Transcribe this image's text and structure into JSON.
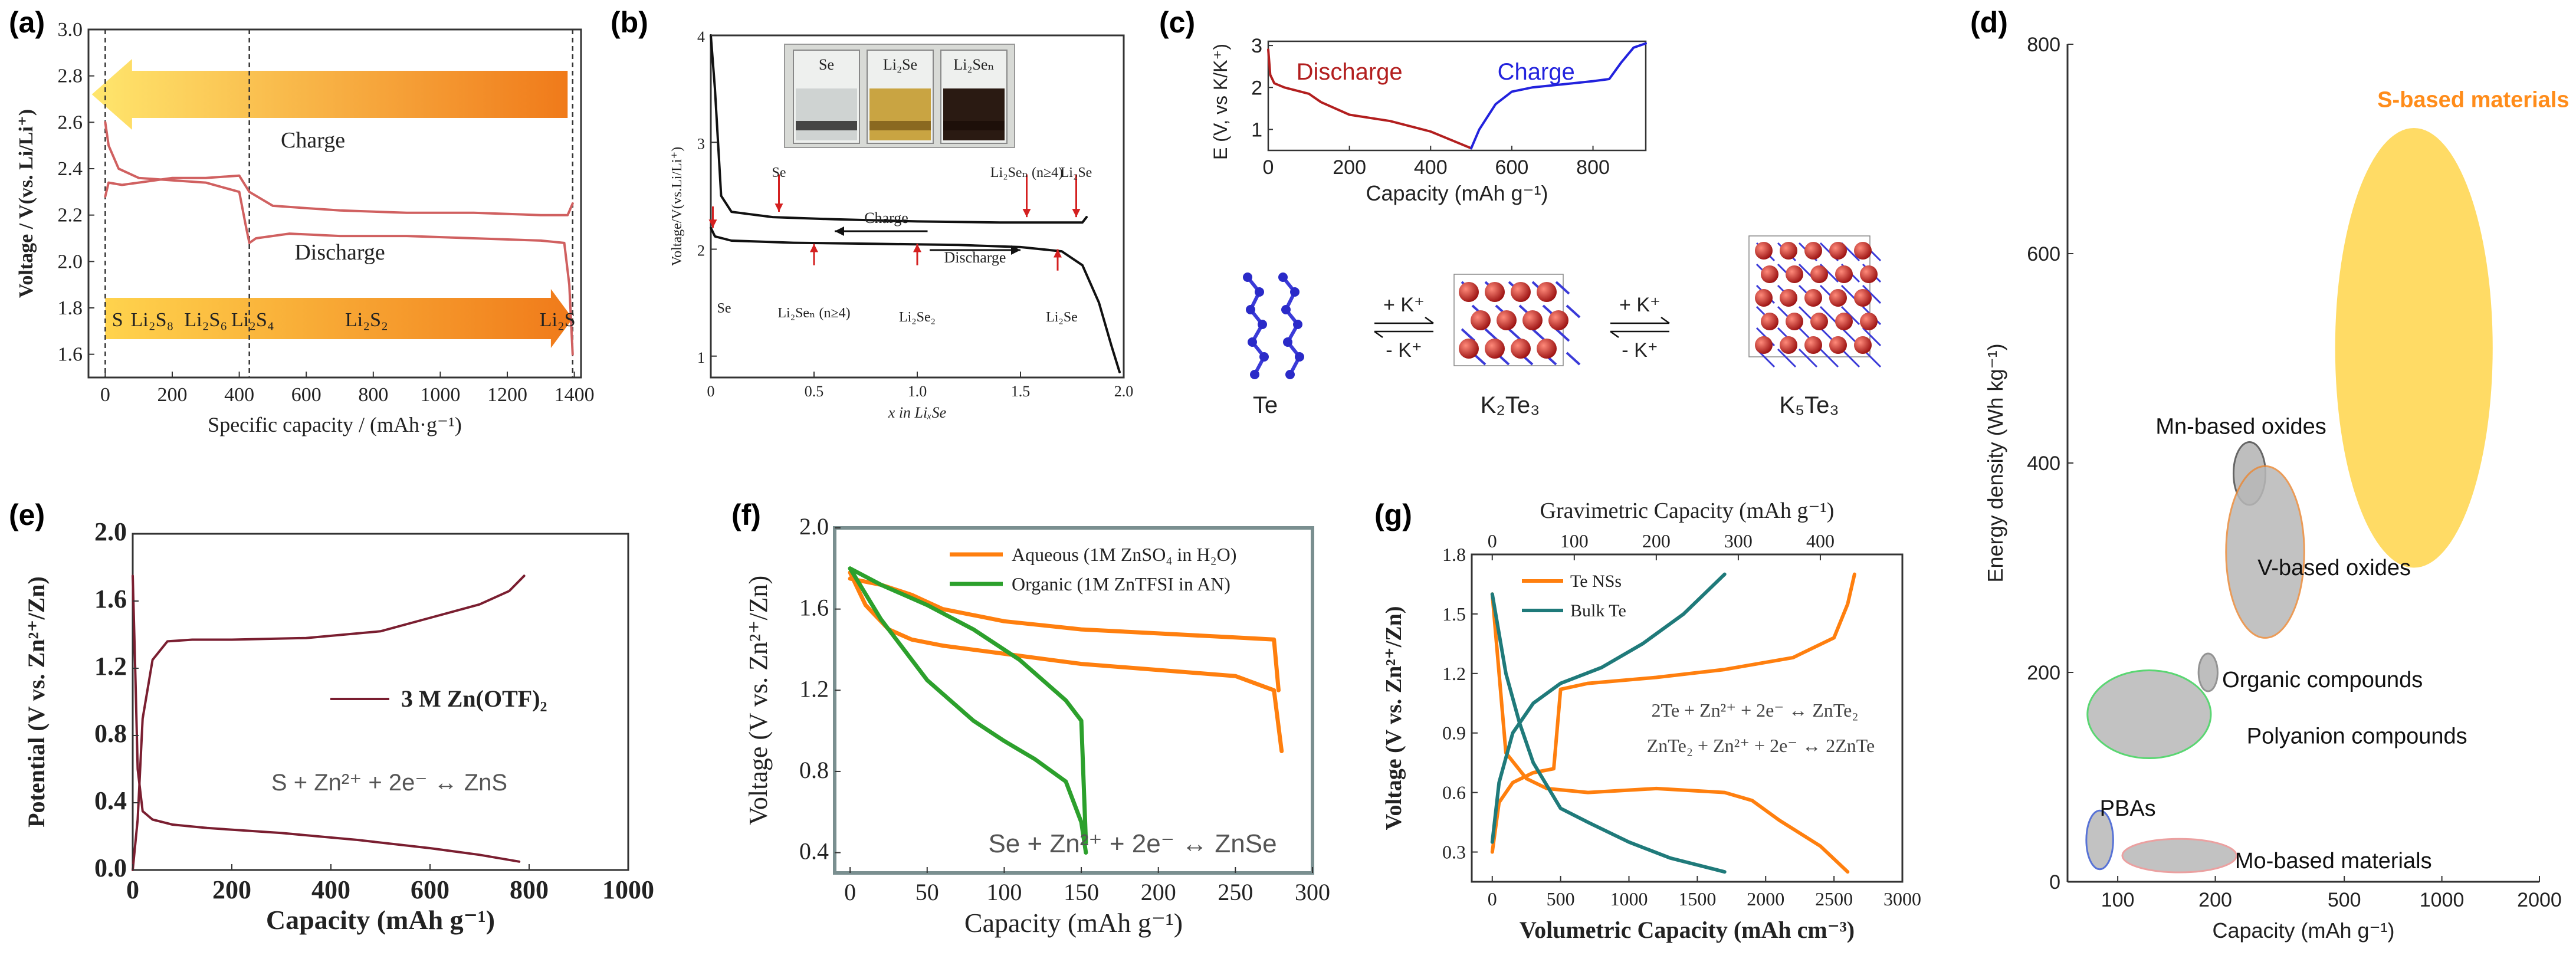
{
  "colors": {
    "charge_red": "#b21e1e",
    "charge_blue": "#2222dd",
    "curve_a": "#d06060",
    "orange": "#ff7f0e",
    "green": "#2ca02c",
    "teal": "#1f7a7a",
    "maroon": "#7a1e30",
    "yellow": "#ffd54a",
    "s_label": "#ff8c1a",
    "ellipse_gray": "#b8b8b8"
  },
  "chart_data": [
    {
      "id": "a",
      "panel_label": "(a)",
      "type": "line",
      "xlabel": "Specific capacity / (mAh·g⁻¹)",
      "ylabel": "Voltage / V(vs. Li/Li⁺)",
      "xlim": [
        -50,
        1420
      ],
      "ylim": [
        1.5,
        3.0
      ],
      "xticks": [
        "0",
        "200",
        "400",
        "600",
        "800",
        "1000",
        "1200",
        "1400"
      ],
      "yticks": [
        "1.6",
        "1.8",
        "2.0",
        "2.2",
        "2.4",
        "2.6",
        "2.8",
        "3.0"
      ],
      "charge_label": "Charge",
      "discharge_label": "Discharge",
      "species": [
        "S",
        "Li₂S₈",
        "Li₂S₆",
        "Li₂S₄",
        "Li₂S₂",
        "Li₂S"
      ],
      "series": [
        {
          "name": "Charge",
          "x": [
            0,
            10,
            50,
            100,
            200,
            300,
            400,
            430,
            500,
            700,
            900,
            1100,
            1300,
            1380,
            1395
          ],
          "y": [
            2.28,
            2.34,
            2.33,
            2.34,
            2.36,
            2.36,
            2.37,
            2.3,
            2.24,
            2.22,
            2.21,
            2.21,
            2.2,
            2.2,
            2.25
          ]
        },
        {
          "name": "Discharge",
          "x": [
            0,
            10,
            40,
            100,
            200,
            300,
            400,
            420,
            430,
            450,
            550,
            700,
            900,
            1100,
            1300,
            1370,
            1385,
            1395
          ],
          "y": [
            2.6,
            2.5,
            2.4,
            2.36,
            2.35,
            2.34,
            2.3,
            2.15,
            2.08,
            2.1,
            2.12,
            2.11,
            2.11,
            2.1,
            2.09,
            2.08,
            1.9,
            1.6
          ]
        }
      ]
    },
    {
      "id": "b",
      "panel_label": "(b)",
      "type": "line",
      "xlabel": "x in LiₓSe",
      "ylabel": "Voltage/V(vs.Li/Li⁺)",
      "xlim": [
        0,
        2.0
      ],
      "ylim": [
        0.8,
        4.0
      ],
      "xticks": [
        "0",
        "0.5",
        "1.0",
        "1.5",
        "2.0"
      ],
      "yticks": [
        "1",
        "2",
        "3",
        "4"
      ],
      "vials": [
        "Se",
        "Li₂Se",
        "Li₂Seₙ"
      ],
      "annotations": [
        "Se",
        "Li₂Seₙ (n≥4)",
        "Li₂Se",
        "Se",
        "Li₂Seₙ (n≥4)",
        "Li₂Se₂",
        "Li₂Se",
        "Charge",
        "Discharge"
      ],
      "series": [
        {
          "name": "Charge",
          "x": [
            0.0,
            0.02,
            0.05,
            0.1,
            0.3,
            0.6,
            1.0,
            1.4,
            1.7,
            1.8,
            1.82
          ],
          "y": [
            4.0,
            3.5,
            2.5,
            2.35,
            2.3,
            2.28,
            2.26,
            2.25,
            2.25,
            2.25,
            2.3
          ]
        },
        {
          "name": "Discharge",
          "x": [
            0.0,
            0.02,
            0.1,
            0.4,
            0.8,
            1.2,
            1.5,
            1.7,
            1.8,
            1.88,
            1.94,
            1.98
          ],
          "y": [
            2.2,
            2.12,
            2.08,
            2.06,
            2.05,
            2.04,
            2.02,
            1.98,
            1.85,
            1.5,
            1.1,
            0.85
          ]
        }
      ]
    },
    {
      "id": "c",
      "panel_label": "(c)",
      "type": "line",
      "xlabel": "Capacity (mAh g⁻¹)",
      "ylabel": "E (V, vs K/K⁺)",
      "xlim": [
        0,
        930
      ],
      "ylim": [
        0.5,
        3.1
      ],
      "xticks": [
        "0",
        "200",
        "400",
        "600",
        "800"
      ],
      "yticks": [
        "1",
        "2",
        "3"
      ],
      "discharge_label": "Discharge",
      "charge_label": "Charge",
      "reaction_labels": [
        "+ K⁺",
        "- K⁺",
        "+ K⁺",
        "- K⁺"
      ],
      "structures": [
        "Te",
        "K₂Te₃",
        "K₅Te₃"
      ],
      "series": [
        {
          "name": "Discharge",
          "x": [
            0,
            5,
            15,
            40,
            100,
            130,
            200,
            300,
            400,
            450,
            500
          ],
          "y": [
            2.9,
            2.3,
            2.1,
            2.0,
            1.85,
            1.65,
            1.35,
            1.2,
            0.95,
            0.75,
            0.55
          ]
        },
        {
          "name": "Charge",
          "x": [
            500,
            520,
            560,
            600,
            650,
            700,
            750,
            800,
            840,
            870,
            900,
            930
          ],
          "y": [
            0.55,
            1.0,
            1.6,
            1.9,
            2.0,
            2.05,
            2.1,
            2.15,
            2.2,
            2.6,
            2.95,
            3.05
          ]
        }
      ]
    },
    {
      "id": "d",
      "panel_label": "(d)",
      "type": "scatter",
      "xlabel": "Capacity (mAh g⁻¹)",
      "ylabel": "Energy density (Wh kg⁻¹)",
      "xscale": "log",
      "xlim": [
        70,
        2000
      ],
      "ylim": [
        0,
        800
      ],
      "xticks": [
        "100",
        "200",
        "500",
        "1000",
        "2000"
      ],
      "yticks": [
        "0",
        "200",
        "400",
        "600",
        "800"
      ],
      "regions": [
        {
          "name": "S-based materials",
          "cx": 820,
          "cy": 510,
          "rx_factor": 1.75,
          "ry": 210
        },
        {
          "name": "Mn-based oxides",
          "cx": 255,
          "cy": 390,
          "rx_factor": 1.12,
          "ry": 30
        },
        {
          "name": "V-based oxides",
          "cx": 285,
          "cy": 315,
          "rx_factor": 1.32,
          "ry": 82
        },
        {
          "name": "Organic compounds",
          "cx": 190,
          "cy": 200,
          "rx_factor": 1.07,
          "ry": 18
        },
        {
          "name": "Polyanion compounds",
          "cx": 125,
          "cy": 160,
          "rx_factor": 1.55,
          "ry": 42
        },
        {
          "name": "PBAs",
          "cx": 88,
          "cy": 40,
          "rx_factor": 1.1,
          "ry": 28
        },
        {
          "name": "Mo-based materials",
          "cx": 155,
          "cy": 25,
          "rx_factor": 1.5,
          "ry": 16
        }
      ]
    },
    {
      "id": "e",
      "panel_label": "(e)",
      "type": "line",
      "xlabel": "Capacity (mAh g⁻¹)",
      "ylabel": "Potential (V vs. Zn²⁺/Zn)",
      "xlim": [
        0,
        1000
      ],
      "ylim": [
        0,
        2.0
      ],
      "xticks": [
        "0",
        "200",
        "400",
        "600",
        "800",
        "1000"
      ],
      "yticks": [
        "0.0",
        "0.4",
        "0.8",
        "1.2",
        "1.6",
        "2.0"
      ],
      "legend": "3 M Zn(OTF)₂",
      "reaction": "S + Zn²⁺ + 2e⁻ ↔ ZnS",
      "series": [
        {
          "name": "Discharge",
          "x": [
            0,
            5,
            10,
            20,
            40,
            80,
            150,
            300,
            450,
            600,
            700,
            780
          ],
          "y": [
            1.75,
            1.2,
            0.6,
            0.35,
            0.3,
            0.27,
            0.25,
            0.22,
            0.18,
            0.13,
            0.09,
            0.05
          ]
        },
        {
          "name": "Charge",
          "x": [
            0,
            10,
            20,
            40,
            70,
            120,
            200,
            350,
            500,
            600,
            700,
            760,
            790
          ],
          "y": [
            0.0,
            0.3,
            0.9,
            1.25,
            1.36,
            1.37,
            1.37,
            1.38,
            1.42,
            1.5,
            1.58,
            1.66,
            1.75
          ]
        }
      ]
    },
    {
      "id": "f",
      "panel_label": "(f)",
      "type": "line",
      "xlabel": "Capacity (mAh g⁻¹)",
      "ylabel": "Voltage (V vs. Zn²⁺/Zn)",
      "xlim": [
        -10,
        300
      ],
      "ylim": [
        0.3,
        2.0
      ],
      "xticks": [
        "0",
        "50",
        "100",
        "150",
        "200",
        "250",
        "300"
      ],
      "yticks": [
        "0.4",
        "0.8",
        "1.2",
        "1.6",
        "2.0"
      ],
      "legend": [
        "Aqueous (1M ZnSO₄ in H₂O)",
        "Organic (1M ZnTFSI in AN)"
      ],
      "reaction": "Se + Zn²⁺ + 2e⁻ ↔ ZnSe",
      "series": [
        {
          "name": "Aqueous discharge",
          "x": [
            0,
            10,
            25,
            40,
            60,
            100,
            150,
            200,
            250,
            275,
            280
          ],
          "y": [
            1.78,
            1.62,
            1.5,
            1.45,
            1.42,
            1.38,
            1.33,
            1.3,
            1.27,
            1.2,
            0.9
          ]
        },
        {
          "name": "Aqueous charge",
          "x": [
            0,
            20,
            40,
            60,
            100,
            150,
            200,
            250,
            275,
            278
          ],
          "y": [
            1.75,
            1.72,
            1.67,
            1.6,
            1.54,
            1.5,
            1.48,
            1.46,
            1.45,
            1.2
          ]
        },
        {
          "name": "Organic discharge",
          "x": [
            0,
            20,
            50,
            80,
            100,
            120,
            140,
            150,
            153
          ],
          "y": [
            1.8,
            1.55,
            1.25,
            1.05,
            0.95,
            0.86,
            0.75,
            0.55,
            0.4
          ]
        },
        {
          "name": "Organic charge",
          "x": [
            0,
            20,
            50,
            80,
            110,
            140,
            150,
            153
          ],
          "y": [
            1.8,
            1.72,
            1.62,
            1.5,
            1.35,
            1.15,
            1.05,
            0.45
          ]
        }
      ]
    },
    {
      "id": "g",
      "panel_label": "(g)",
      "type": "line",
      "xlabel": "Volumetric Capacity (mAh cm⁻³)",
      "x2label": "Gravimetric Capacity (mAh g⁻¹)",
      "ylabel": "Voltage (V vs. Zn²⁺/Zn)",
      "xlim": [
        -150,
        3000
      ],
      "x2lim": [
        -25,
        500
      ],
      "ylim": [
        0.15,
        1.8
      ],
      "xticks": [
        "0",
        "500",
        "1000",
        "1500",
        "2000",
        "2500",
        "3000"
      ],
      "x2ticks": [
        "0",
        "100",
        "200",
        "300",
        "400"
      ],
      "yticks": [
        "0.3",
        "0.6",
        "0.9",
        "1.2",
        "1.5",
        "1.8"
      ],
      "legend": [
        "Te NSs",
        "Bulk Te"
      ],
      "reactions": [
        "2Te + Zn²⁺ + 2e⁻ ↔ ZnTe₂",
        "ZnTe₂ + Zn²⁺ + 2e⁻ ↔ 2ZnTe"
      ],
      "series": [
        {
          "name": "Te NSs discharge",
          "x": [
            0,
            100,
            250,
            400,
            700,
            1200,
            1700,
            1900,
            2100,
            2400,
            2600
          ],
          "y": [
            1.6,
            0.8,
            0.67,
            0.62,
            0.6,
            0.62,
            0.6,
            0.56,
            0.46,
            0.33,
            0.2
          ]
        },
        {
          "name": "Te NSs charge",
          "x": [
            0,
            50,
            150,
            300,
            450,
            500,
            700,
            1200,
            1700,
            2200,
            2500,
            2600,
            2650
          ],
          "y": [
            0.3,
            0.55,
            0.65,
            0.7,
            0.72,
            1.12,
            1.15,
            1.18,
            1.22,
            1.28,
            1.38,
            1.55,
            1.7
          ]
        },
        {
          "name": "Bulk Te discharge",
          "x": [
            0,
            100,
            200,
            300,
            500,
            700,
            1000,
            1300,
            1700
          ],
          "y": [
            1.6,
            1.2,
            0.95,
            0.75,
            0.52,
            0.45,
            0.35,
            0.27,
            0.2
          ]
        },
        {
          "name": "Bulk Te charge",
          "x": [
            0,
            50,
            150,
            300,
            500,
            800,
            1100,
            1400,
            1700
          ],
          "y": [
            0.35,
            0.65,
            0.9,
            1.05,
            1.15,
            1.23,
            1.35,
            1.5,
            1.7
          ]
        }
      ]
    }
  ]
}
